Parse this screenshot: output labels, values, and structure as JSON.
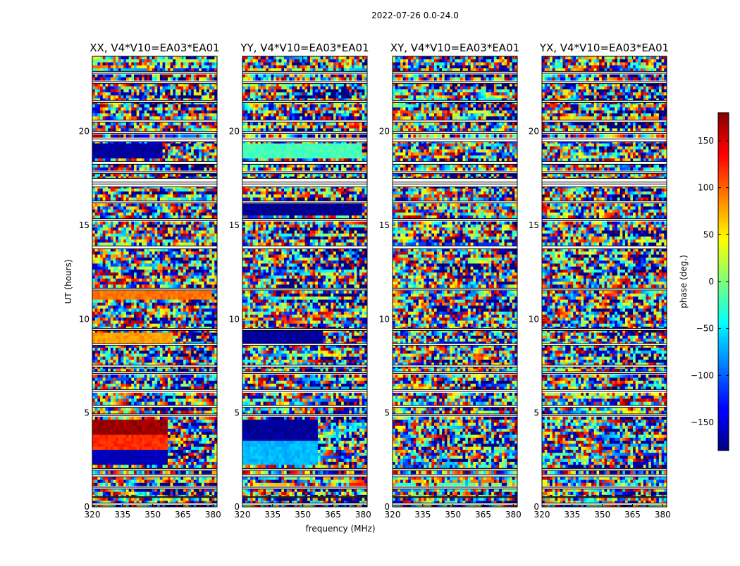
{
  "chart_data": {
    "type": "heatmap",
    "title": "2022-07-26 0.0-24.0",
    "xlabel": "frequency (MHz)",
    "ylabel": "UT (hours)",
    "xlim": [
      320,
      382
    ],
    "ylim": [
      0,
      24
    ],
    "x_ticks": [
      320,
      335,
      350,
      365,
      380
    ],
    "y_ticks": [
      0,
      5,
      10,
      15,
      20
    ],
    "panels": [
      {
        "title": "XX, V4*V10=EA03*EA01",
        "polarization": "XX"
      },
      {
        "title": "YY, V4*V10=EA03*EA01",
        "polarization": "YY"
      },
      {
        "title": "XY, V4*V10=EA03*EA01",
        "polarization": "XY"
      },
      {
        "title": "YX, V4*V10=EA03*EA01",
        "polarization": "YX"
      }
    ],
    "colorbar": {
      "label": "phase (deg.)",
      "colormap": "jet",
      "range": [
        -180,
        180
      ],
      "ticks": [
        150,
        100,
        50,
        0,
        -50,
        -100,
        -150
      ],
      "tick_labels": [
        "150",
        "100",
        "50",
        "0",
        "−50",
        "−100",
        "−150"
      ]
    },
    "flagged_ut_bands": [
      [
        0.1,
        0.2
      ],
      [
        0.5,
        0.55
      ],
      [
        0.95,
        1.05
      ],
      [
        1.6,
        1.7
      ],
      [
        1.95,
        2.05
      ],
      [
        4.85,
        4.95
      ],
      [
        5.3,
        5.4
      ],
      [
        6.15,
        6.25
      ],
      [
        7.1,
        7.2
      ],
      [
        7.45,
        7.55
      ],
      [
        8.6,
        8.7
      ],
      [
        9.4,
        9.5
      ],
      [
        11.55,
        11.65
      ],
      [
        13.75,
        13.9
      ],
      [
        15.25,
        15.35
      ],
      [
        16.2,
        16.3
      ],
      [
        17.05,
        17.2
      ],
      [
        17.3,
        17.5
      ],
      [
        17.75,
        17.85
      ],
      [
        18.25,
        18.4
      ],
      [
        19.45,
        19.6
      ],
      [
        19.9,
        20.0
      ],
      [
        20.5,
        20.6
      ],
      [
        21.55,
        21.65
      ],
      [
        22.55,
        22.65
      ],
      [
        23.1,
        23.2
      ]
    ],
    "coherent_regions": [
      {
        "panel": "XX",
        "ut": [
          2.2,
          4.7
        ],
        "freq": [
          320,
          358
        ],
        "phase_deg": [
          -160,
          120,
          170
        ]
      },
      {
        "panel": "XX",
        "ut": [
          8.7,
          9.3
        ],
        "freq": [
          320,
          360
        ],
        "phase_deg": [
          80
        ]
      },
      {
        "panel": "XX",
        "ut": [
          11.0,
          11.5
        ],
        "freq": [
          320,
          380
        ],
        "phase_deg": [
          95
        ]
      },
      {
        "panel": "XX",
        "ut": [
          18.6,
          19.3
        ],
        "freq": [
          320,
          355
        ],
        "phase_deg": [
          -170
        ]
      },
      {
        "panel": "YY",
        "ut": [
          2.2,
          4.7
        ],
        "freq": [
          320,
          357
        ],
        "phase_deg": [
          -70,
          -170
        ]
      },
      {
        "panel": "YY",
        "ut": [
          8.7,
          9.5
        ],
        "freq": [
          320,
          360
        ],
        "phase_deg": [
          -170
        ]
      },
      {
        "panel": "YY",
        "ut": [
          15.5,
          16.3
        ],
        "freq": [
          320,
          380
        ],
        "phase_deg": [
          -175
        ]
      },
      {
        "panel": "YY",
        "ut": [
          18.5,
          19.3
        ],
        "freq": [
          320,
          380
        ],
        "phase_deg": [
          -20
        ]
      }
    ]
  }
}
